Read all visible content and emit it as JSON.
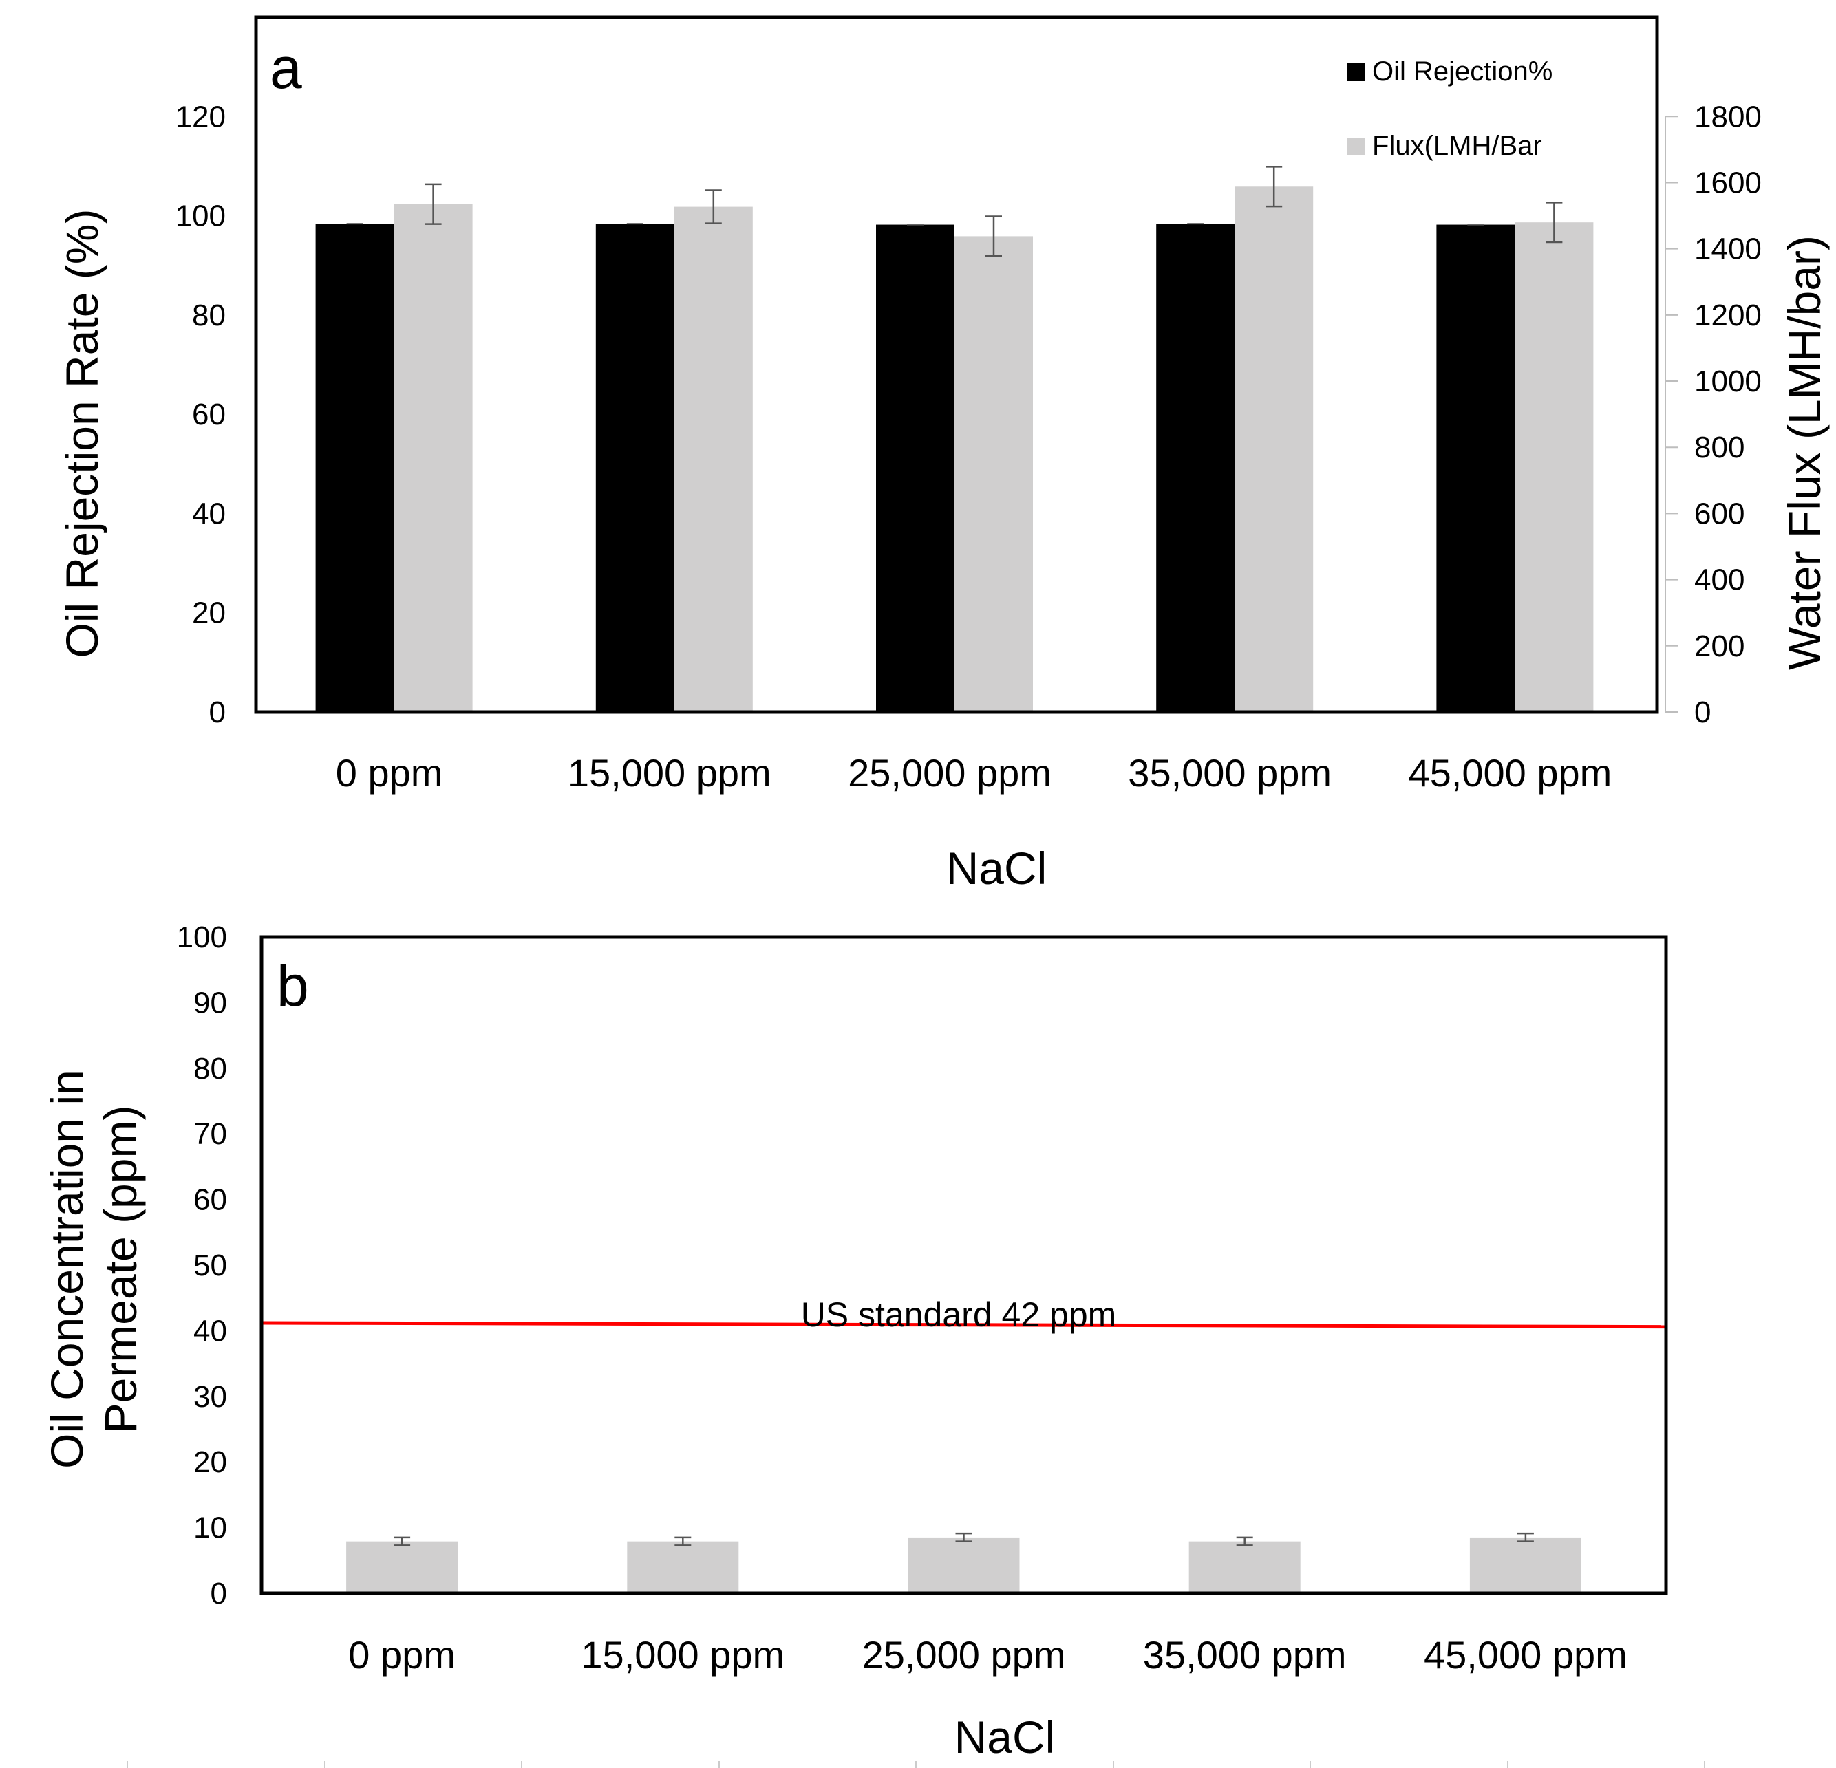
{
  "chart_data": [
    {
      "panel_label": "a",
      "type": "bar",
      "categories": [
        "0 ppm",
        "15,000 ppm",
        "25,000 ppm",
        "35,000 ppm",
        "45,000 ppm"
      ],
      "xlabel": "NaCl",
      "ylabel": "Oil Rejection Rate (%)",
      "y2label": "Water Flux (LMH/bar)",
      "ylim": [
        0,
        140
      ],
      "yticks": [
        0,
        20,
        40,
        60,
        80,
        100,
        120
      ],
      "y2lim": [
        0,
        2100
      ],
      "y2ticks": [
        0,
        200,
        400,
        600,
        800,
        1000,
        1200,
        1400,
        1600,
        1800
      ],
      "grid": false,
      "legend_position": "top-right",
      "series": [
        {
          "name": "Oil Rejection%",
          "axis": "left",
          "color": "#000000",
          "values": [
            98.4,
            98.4,
            98.2,
            98.4,
            98.2
          ],
          "errors": [
            0.2,
            0.2,
            0.2,
            0.2,
            0.2
          ]
        },
        {
          "name": "Flux(LMH/Bar",
          "axis": "right",
          "color": "#d0cfcf",
          "values": [
            1535,
            1527,
            1438,
            1588,
            1480
          ],
          "errors": [
            60,
            50,
            60,
            60,
            60
          ]
        }
      ]
    },
    {
      "panel_label": "b",
      "type": "bar",
      "categories": [
        "0 ppm",
        "15,000 ppm",
        "25,000 ppm",
        "35,000 ppm",
        "45,000 ppm"
      ],
      "xlabel": "NaCl",
      "ylabel_lines": [
        "Oil Concentration in",
        "Permeate (ppm)"
      ],
      "ylim": [
        0,
        100
      ],
      "yticks": [
        0,
        10,
        20,
        30,
        40,
        50,
        60,
        70,
        80,
        90,
        100
      ],
      "grid": false,
      "series": [
        {
          "name": "Oil Concentration in Permeate",
          "color": "#d0cfcf",
          "values": [
            7.9,
            7.9,
            8.5,
            7.9,
            8.5
          ],
          "errors": [
            0.6,
            0.6,
            0.6,
            0.6,
            0.6
          ]
        }
      ],
      "reference_line": {
        "label": "US standard 42 ppm",
        "y_start": 41.2,
        "y_end": 40.6,
        "color": "#ff0000"
      }
    }
  ]
}
